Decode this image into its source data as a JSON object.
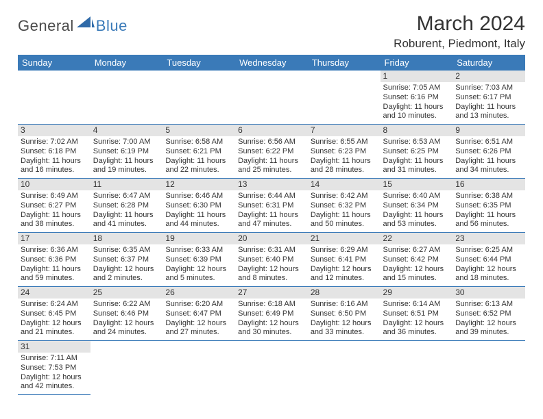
{
  "logo": {
    "general": "General",
    "blue": "Blue",
    "shape_color": "#2f6aa8"
  },
  "title": "March 2024",
  "location": "Roburent, Piedmont, Italy",
  "colors": {
    "header_bg": "#3a7ab8",
    "header_fg": "#ffffff",
    "daynum_bg": "#e4e4e4",
    "rule": "#3a7ab8",
    "text": "#333333"
  },
  "day_headers": [
    "Sunday",
    "Monday",
    "Tuesday",
    "Wednesday",
    "Thursday",
    "Friday",
    "Saturday"
  ],
  "weeks": [
    [
      null,
      null,
      null,
      null,
      null,
      {
        "n": "1",
        "sunrise": "Sunrise: 7:05 AM",
        "sunset": "Sunset: 6:16 PM",
        "day1": "Daylight: 11 hours",
        "day2": "and 10 minutes."
      },
      {
        "n": "2",
        "sunrise": "Sunrise: 7:03 AM",
        "sunset": "Sunset: 6:17 PM",
        "day1": "Daylight: 11 hours",
        "day2": "and 13 minutes."
      }
    ],
    [
      {
        "n": "3",
        "sunrise": "Sunrise: 7:02 AM",
        "sunset": "Sunset: 6:18 PM",
        "day1": "Daylight: 11 hours",
        "day2": "and 16 minutes."
      },
      {
        "n": "4",
        "sunrise": "Sunrise: 7:00 AM",
        "sunset": "Sunset: 6:19 PM",
        "day1": "Daylight: 11 hours",
        "day2": "and 19 minutes."
      },
      {
        "n": "5",
        "sunrise": "Sunrise: 6:58 AM",
        "sunset": "Sunset: 6:21 PM",
        "day1": "Daylight: 11 hours",
        "day2": "and 22 minutes."
      },
      {
        "n": "6",
        "sunrise": "Sunrise: 6:56 AM",
        "sunset": "Sunset: 6:22 PM",
        "day1": "Daylight: 11 hours",
        "day2": "and 25 minutes."
      },
      {
        "n": "7",
        "sunrise": "Sunrise: 6:55 AM",
        "sunset": "Sunset: 6:23 PM",
        "day1": "Daylight: 11 hours",
        "day2": "and 28 minutes."
      },
      {
        "n": "8",
        "sunrise": "Sunrise: 6:53 AM",
        "sunset": "Sunset: 6:25 PM",
        "day1": "Daylight: 11 hours",
        "day2": "and 31 minutes."
      },
      {
        "n": "9",
        "sunrise": "Sunrise: 6:51 AM",
        "sunset": "Sunset: 6:26 PM",
        "day1": "Daylight: 11 hours",
        "day2": "and 34 minutes."
      }
    ],
    [
      {
        "n": "10",
        "sunrise": "Sunrise: 6:49 AM",
        "sunset": "Sunset: 6:27 PM",
        "day1": "Daylight: 11 hours",
        "day2": "and 38 minutes."
      },
      {
        "n": "11",
        "sunrise": "Sunrise: 6:47 AM",
        "sunset": "Sunset: 6:28 PM",
        "day1": "Daylight: 11 hours",
        "day2": "and 41 minutes."
      },
      {
        "n": "12",
        "sunrise": "Sunrise: 6:46 AM",
        "sunset": "Sunset: 6:30 PM",
        "day1": "Daylight: 11 hours",
        "day2": "and 44 minutes."
      },
      {
        "n": "13",
        "sunrise": "Sunrise: 6:44 AM",
        "sunset": "Sunset: 6:31 PM",
        "day1": "Daylight: 11 hours",
        "day2": "and 47 minutes."
      },
      {
        "n": "14",
        "sunrise": "Sunrise: 6:42 AM",
        "sunset": "Sunset: 6:32 PM",
        "day1": "Daylight: 11 hours",
        "day2": "and 50 minutes."
      },
      {
        "n": "15",
        "sunrise": "Sunrise: 6:40 AM",
        "sunset": "Sunset: 6:34 PM",
        "day1": "Daylight: 11 hours",
        "day2": "and 53 minutes."
      },
      {
        "n": "16",
        "sunrise": "Sunrise: 6:38 AM",
        "sunset": "Sunset: 6:35 PM",
        "day1": "Daylight: 11 hours",
        "day2": "and 56 minutes."
      }
    ],
    [
      {
        "n": "17",
        "sunrise": "Sunrise: 6:36 AM",
        "sunset": "Sunset: 6:36 PM",
        "day1": "Daylight: 11 hours",
        "day2": "and 59 minutes."
      },
      {
        "n": "18",
        "sunrise": "Sunrise: 6:35 AM",
        "sunset": "Sunset: 6:37 PM",
        "day1": "Daylight: 12 hours",
        "day2": "and 2 minutes."
      },
      {
        "n": "19",
        "sunrise": "Sunrise: 6:33 AM",
        "sunset": "Sunset: 6:39 PM",
        "day1": "Daylight: 12 hours",
        "day2": "and 5 minutes."
      },
      {
        "n": "20",
        "sunrise": "Sunrise: 6:31 AM",
        "sunset": "Sunset: 6:40 PM",
        "day1": "Daylight: 12 hours",
        "day2": "and 8 minutes."
      },
      {
        "n": "21",
        "sunrise": "Sunrise: 6:29 AM",
        "sunset": "Sunset: 6:41 PM",
        "day1": "Daylight: 12 hours",
        "day2": "and 12 minutes."
      },
      {
        "n": "22",
        "sunrise": "Sunrise: 6:27 AM",
        "sunset": "Sunset: 6:42 PM",
        "day1": "Daylight: 12 hours",
        "day2": "and 15 minutes."
      },
      {
        "n": "23",
        "sunrise": "Sunrise: 6:25 AM",
        "sunset": "Sunset: 6:44 PM",
        "day1": "Daylight: 12 hours",
        "day2": "and 18 minutes."
      }
    ],
    [
      {
        "n": "24",
        "sunrise": "Sunrise: 6:24 AM",
        "sunset": "Sunset: 6:45 PM",
        "day1": "Daylight: 12 hours",
        "day2": "and 21 minutes."
      },
      {
        "n": "25",
        "sunrise": "Sunrise: 6:22 AM",
        "sunset": "Sunset: 6:46 PM",
        "day1": "Daylight: 12 hours",
        "day2": "and 24 minutes."
      },
      {
        "n": "26",
        "sunrise": "Sunrise: 6:20 AM",
        "sunset": "Sunset: 6:47 PM",
        "day1": "Daylight: 12 hours",
        "day2": "and 27 minutes."
      },
      {
        "n": "27",
        "sunrise": "Sunrise: 6:18 AM",
        "sunset": "Sunset: 6:49 PM",
        "day1": "Daylight: 12 hours",
        "day2": "and 30 minutes."
      },
      {
        "n": "28",
        "sunrise": "Sunrise: 6:16 AM",
        "sunset": "Sunset: 6:50 PM",
        "day1": "Daylight: 12 hours",
        "day2": "and 33 minutes."
      },
      {
        "n": "29",
        "sunrise": "Sunrise: 6:14 AM",
        "sunset": "Sunset: 6:51 PM",
        "day1": "Daylight: 12 hours",
        "day2": "and 36 minutes."
      },
      {
        "n": "30",
        "sunrise": "Sunrise: 6:13 AM",
        "sunset": "Sunset: 6:52 PM",
        "day1": "Daylight: 12 hours",
        "day2": "and 39 minutes."
      }
    ],
    [
      {
        "n": "31",
        "sunrise": "Sunrise: 7:11 AM",
        "sunset": "Sunset: 7:53 PM",
        "day1": "Daylight: 12 hours",
        "day2": "and 42 minutes."
      },
      null,
      null,
      null,
      null,
      null,
      null
    ]
  ]
}
